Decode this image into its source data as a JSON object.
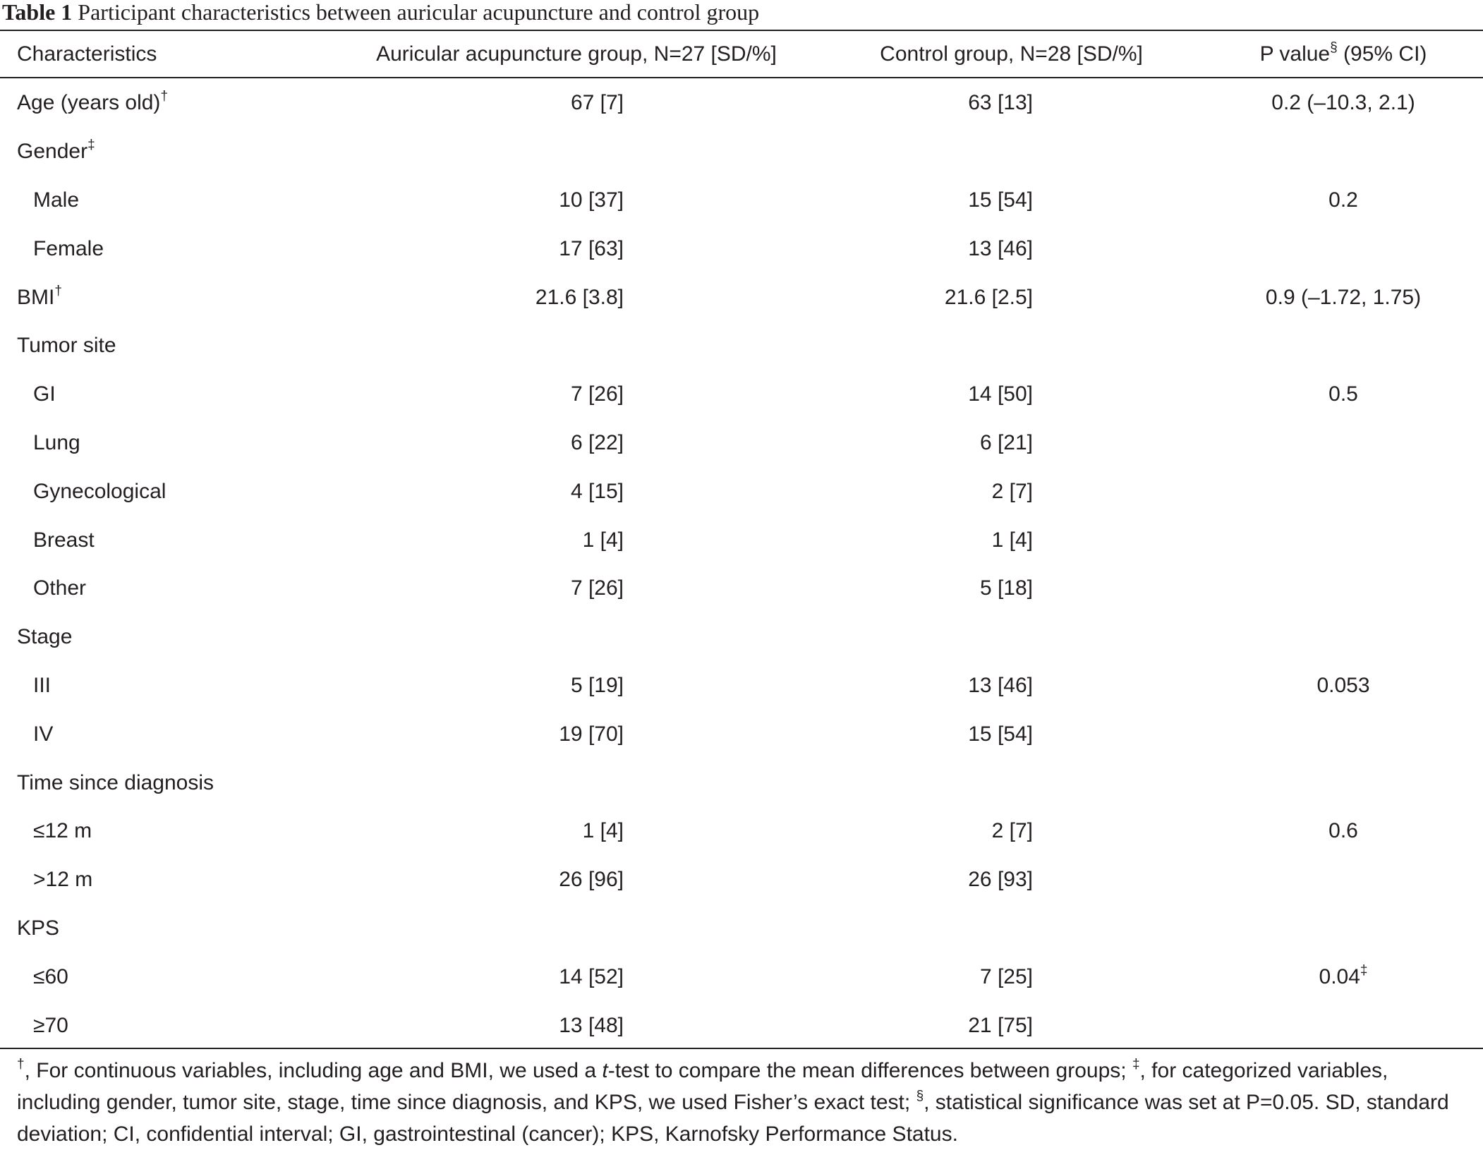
{
  "caption": {
    "label": "Table 1",
    "title": "Participant characteristics between auricular acupuncture and control group"
  },
  "headers": {
    "characteristics": "Characteristics",
    "aa_group": "Auricular acupuncture group, N=27 [SD/%]",
    "control_group": "Control group, N=28 [SD/%]",
    "p_value": "P value",
    "p_value_mark": "§",
    "p_value_suffix": " (95% CI)"
  },
  "rows": [
    {
      "label": "Age (years old)",
      "mark": "†",
      "indent": false,
      "aa": "67 [7]",
      "ctl": "63 [13]",
      "p": "0.2 (–10.3, 2.1)",
      "p_mark": ""
    },
    {
      "label": "Gender",
      "mark": "‡",
      "indent": false,
      "aa": "",
      "ctl": "",
      "p": "",
      "p_mark": ""
    },
    {
      "label": "Male",
      "mark": "",
      "indent": true,
      "aa": "10 [37]",
      "ctl": "15 [54]",
      "p": "0.2",
      "p_mark": ""
    },
    {
      "label": "Female",
      "mark": "",
      "indent": true,
      "aa": "17 [63]",
      "ctl": "13 [46]",
      "p": "",
      "p_mark": ""
    },
    {
      "label": "BMI",
      "mark": "†",
      "indent": false,
      "aa": "21.6 [3.8]",
      "ctl": "21.6 [2.5]",
      "p": "0.9 (–1.72, 1.75)",
      "p_mark": ""
    },
    {
      "label": "Tumor site",
      "mark": "",
      "indent": false,
      "aa": "",
      "ctl": "",
      "p": "",
      "p_mark": ""
    },
    {
      "label": "GI",
      "mark": "",
      "indent": true,
      "aa": "7 [26]",
      "ctl": "14 [50]",
      "p": "0.5",
      "p_mark": ""
    },
    {
      "label": "Lung",
      "mark": "",
      "indent": true,
      "aa": "6 [22]",
      "ctl": "6 [21]",
      "p": "",
      "p_mark": ""
    },
    {
      "label": "Gynecological",
      "mark": "",
      "indent": true,
      "aa": "4 [15]",
      "ctl": "2 [7]",
      "p": "",
      "p_mark": ""
    },
    {
      "label": "Breast",
      "mark": "",
      "indent": true,
      "aa": "1 [4]",
      "ctl": "1 [4]",
      "p": "",
      "p_mark": ""
    },
    {
      "label": "Other",
      "mark": "",
      "indent": true,
      "aa": "7 [26]",
      "ctl": "5 [18]",
      "p": "",
      "p_mark": ""
    },
    {
      "label": "Stage",
      "mark": "",
      "indent": false,
      "aa": "",
      "ctl": "",
      "p": "",
      "p_mark": ""
    },
    {
      "label": "III",
      "mark": "",
      "indent": true,
      "aa": "5 [19]",
      "ctl": "13 [46]",
      "p": "0.053",
      "p_mark": ""
    },
    {
      "label": "IV",
      "mark": "",
      "indent": true,
      "aa": "19 [70]",
      "ctl": "15 [54]",
      "p": "",
      "p_mark": ""
    },
    {
      "label": "Time since diagnosis",
      "mark": "",
      "indent": false,
      "aa": "",
      "ctl": "",
      "p": "",
      "p_mark": ""
    },
    {
      "label": "≤12 m",
      "mark": "",
      "indent": true,
      "aa": "1 [4]",
      "ctl": "2 [7]",
      "p": "0.6",
      "p_mark": ""
    },
    {
      "label": ">12 m",
      "mark": "",
      "indent": true,
      "aa": "26 [96]",
      "ctl": "26 [93]",
      "p": "",
      "p_mark": ""
    },
    {
      "label": "KPS",
      "mark": "",
      "indent": false,
      "aa": "",
      "ctl": "",
      "p": "",
      "p_mark": ""
    },
    {
      "label": "≤60",
      "mark": "",
      "indent": true,
      "aa": "14 [52]",
      "ctl": "7 [25]",
      "p": "0.04",
      "p_mark": "‡"
    },
    {
      "label": "≥70",
      "mark": "",
      "indent": true,
      "aa": "13 [48]",
      "ctl": "21 [75]",
      "p": "",
      "p_mark": ""
    }
  ],
  "footnote": {
    "mark1": "†",
    "text1a": ", For continuous variables, including age and BMI, we used a ",
    "text1_italic": "t",
    "text1b": "-test to compare the mean differences between groups; ",
    "mark2": "‡",
    "text2": ", for categorized variables, including gender, tumor site, stage, time since diagnosis, and KPS, we used Fisher’s exact test; ",
    "mark3": "§",
    "text3": ", statistical significance was set at P=0.05. SD, standard deviation; CI, confidential interval; GI, gastrointestinal (cancer); KPS, Karnofsky Performance Status."
  }
}
